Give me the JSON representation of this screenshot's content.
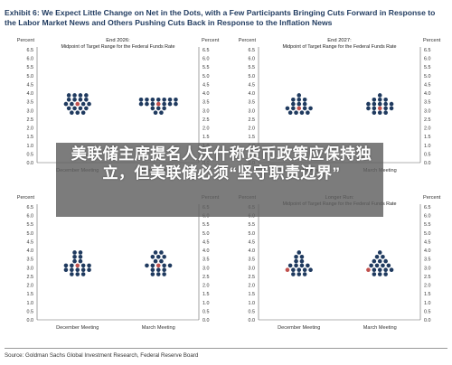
{
  "title": "Exhibit 6: We Expect Little Change on Net in the Dots, with a Few Participants Bringing Cuts Forward in Response to the Labor Market News and Others Pushing Cuts Back in Response to the Inflation News",
  "overlay_headline": "美联储主席提名人沃什称货币政策应保持独立，但美联储必须“坚守职责边界”",
  "source": "Source: Goldman Sachs Global Investment Research, Federal Reserve Board",
  "colors": {
    "dot": "#1f3a5f",
    "highlight": "#c0504d",
    "title": "#1f3a5f"
  },
  "chart_data": [
    {
      "type": "scatter",
      "title": "End 2026:",
      "subtitle": "Midpoint of Target Range for the Federal Funds Rate",
      "ylabel": "Percent",
      "ylim": [
        0.0,
        6.5
      ],
      "yticks": [
        "0.0",
        "0.5",
        "1.0",
        "1.5",
        "2.0",
        "2.5",
        "3.0",
        "3.5",
        "4.0",
        "4.5",
        "5.0",
        "5.5",
        "6.0",
        "6.5"
      ],
      "categories": [
        "December Meeting",
        "March Meeting"
      ],
      "series": [
        {
          "category": "December Meeting",
          "rows": [
            {
              "y": 3.875,
              "n": 4
            },
            {
              "y": 3.625,
              "n": 4
            },
            {
              "y": 3.375,
              "n": 5,
              "highlight": [
                2
              ]
            },
            {
              "y": 3.125,
              "n": 4
            },
            {
              "y": 2.875,
              "n": 3
            }
          ]
        },
        {
          "category": "March Meeting",
          "rows": [
            {
              "y": 3.625,
              "n": 7
            },
            {
              "y": 3.375,
              "n": 7,
              "highlight": [
                3
              ]
            },
            {
              "y": 3.125,
              "n": 3
            },
            {
              "y": 2.875,
              "n": 2
            }
          ]
        }
      ]
    },
    {
      "type": "scatter",
      "title": "End 2027:",
      "subtitle": "Midpoint of Target Range for the Federal Funds Rate",
      "ylabel": "Percent",
      "ylim": [
        0.0,
        6.5
      ],
      "yticks": [
        "0.0",
        "0.5",
        "1.0",
        "1.5",
        "2.0",
        "2.5",
        "3.0",
        "3.5",
        "4.0",
        "4.5",
        "5.0",
        "5.5",
        "6.0",
        "6.5"
      ],
      "categories": [
        "December Meeting",
        "March Meeting"
      ],
      "series": [
        {
          "category": "December Meeting",
          "rows": [
            {
              "y": 3.875,
              "n": 1
            },
            {
              "y": 3.625,
              "n": 3
            },
            {
              "y": 3.375,
              "n": 3
            },
            {
              "y": 3.125,
              "n": 5,
              "highlight": [
                2
              ]
            },
            {
              "y": 2.875,
              "n": 4
            }
          ]
        },
        {
          "category": "March Meeting",
          "rows": [
            {
              "y": 3.875,
              "n": 1
            },
            {
              "y": 3.625,
              "n": 3
            },
            {
              "y": 3.375,
              "n": 5
            },
            {
              "y": 3.125,
              "n": 5,
              "highlight": [
                2
              ]
            },
            {
              "y": 2.875,
              "n": 3
            }
          ]
        }
      ]
    },
    {
      "type": "scatter",
      "title": "",
      "subtitle": "",
      "ylabel": "Percent",
      "ylim": [
        0.0,
        6.5
      ],
      "yticks": [
        "0.0",
        "0.5",
        "1.0",
        "1.5",
        "2.0",
        "2.5",
        "3.0",
        "3.5",
        "4.0",
        "4.5",
        "5.0",
        "5.5",
        "6.0",
        "6.5"
      ],
      "categories": [
        "December Meeting",
        "March Meeting"
      ],
      "series": [
        {
          "category": "December Meeting",
          "rows": [
            {
              "y": 3.875,
              "n": 2
            },
            {
              "y": 3.625,
              "n": 2
            },
            {
              "y": 3.375,
              "n": 2
            },
            {
              "y": 3.125,
              "n": 5,
              "highlight": [
                2
              ]
            },
            {
              "y": 2.875,
              "n": 5
            },
            {
              "y": 2.625,
              "n": 3
            }
          ]
        },
        {
          "category": "March Meeting",
          "rows": [
            {
              "y": 3.875,
              "n": 2
            },
            {
              "y": 3.625,
              "n": 3
            },
            {
              "y": 3.375,
              "n": 2
            },
            {
              "y": 3.125,
              "n": 5,
              "highlight": [
                2
              ]
            },
            {
              "y": 2.875,
              "n": 3
            },
            {
              "y": 2.625,
              "n": 3
            }
          ]
        }
      ]
    },
    {
      "type": "scatter",
      "title": "Longer Run:",
      "subtitle": "Midpoint of Target Range for the Federal Funds Rate",
      "ylabel": "Percent",
      "ylim": [
        0.0,
        6.5
      ],
      "yticks": [
        "0.0",
        "0.5",
        "1.0",
        "1.5",
        "2.0",
        "2.5",
        "3.0",
        "3.5",
        "4.0",
        "4.5",
        "5.0",
        "5.5",
        "6.0",
        "6.5"
      ],
      "categories": [
        "December Meeting",
        "March Meeting"
      ],
      "series": [
        {
          "category": "December Meeting",
          "rows": [
            {
              "y": 3.875,
              "n": 1
            },
            {
              "y": 3.625,
              "n": 2
            },
            {
              "y": 3.375,
              "n": 2
            },
            {
              "y": 3.125,
              "n": 4
            },
            {
              "y": 2.875,
              "n": 5,
              "highlight": [
                0
              ]
            },
            {
              "y": 2.625,
              "n": 3
            }
          ]
        },
        {
          "category": "March Meeting",
          "rows": [
            {
              "y": 3.875,
              "n": 1
            },
            {
              "y": 3.625,
              "n": 2
            },
            {
              "y": 3.375,
              "n": 3
            },
            {
              "y": 3.125,
              "n": 4
            },
            {
              "y": 2.875,
              "n": 5,
              "highlight": [
                0
              ]
            },
            {
              "y": 2.625,
              "n": 3
            }
          ]
        }
      ]
    }
  ]
}
